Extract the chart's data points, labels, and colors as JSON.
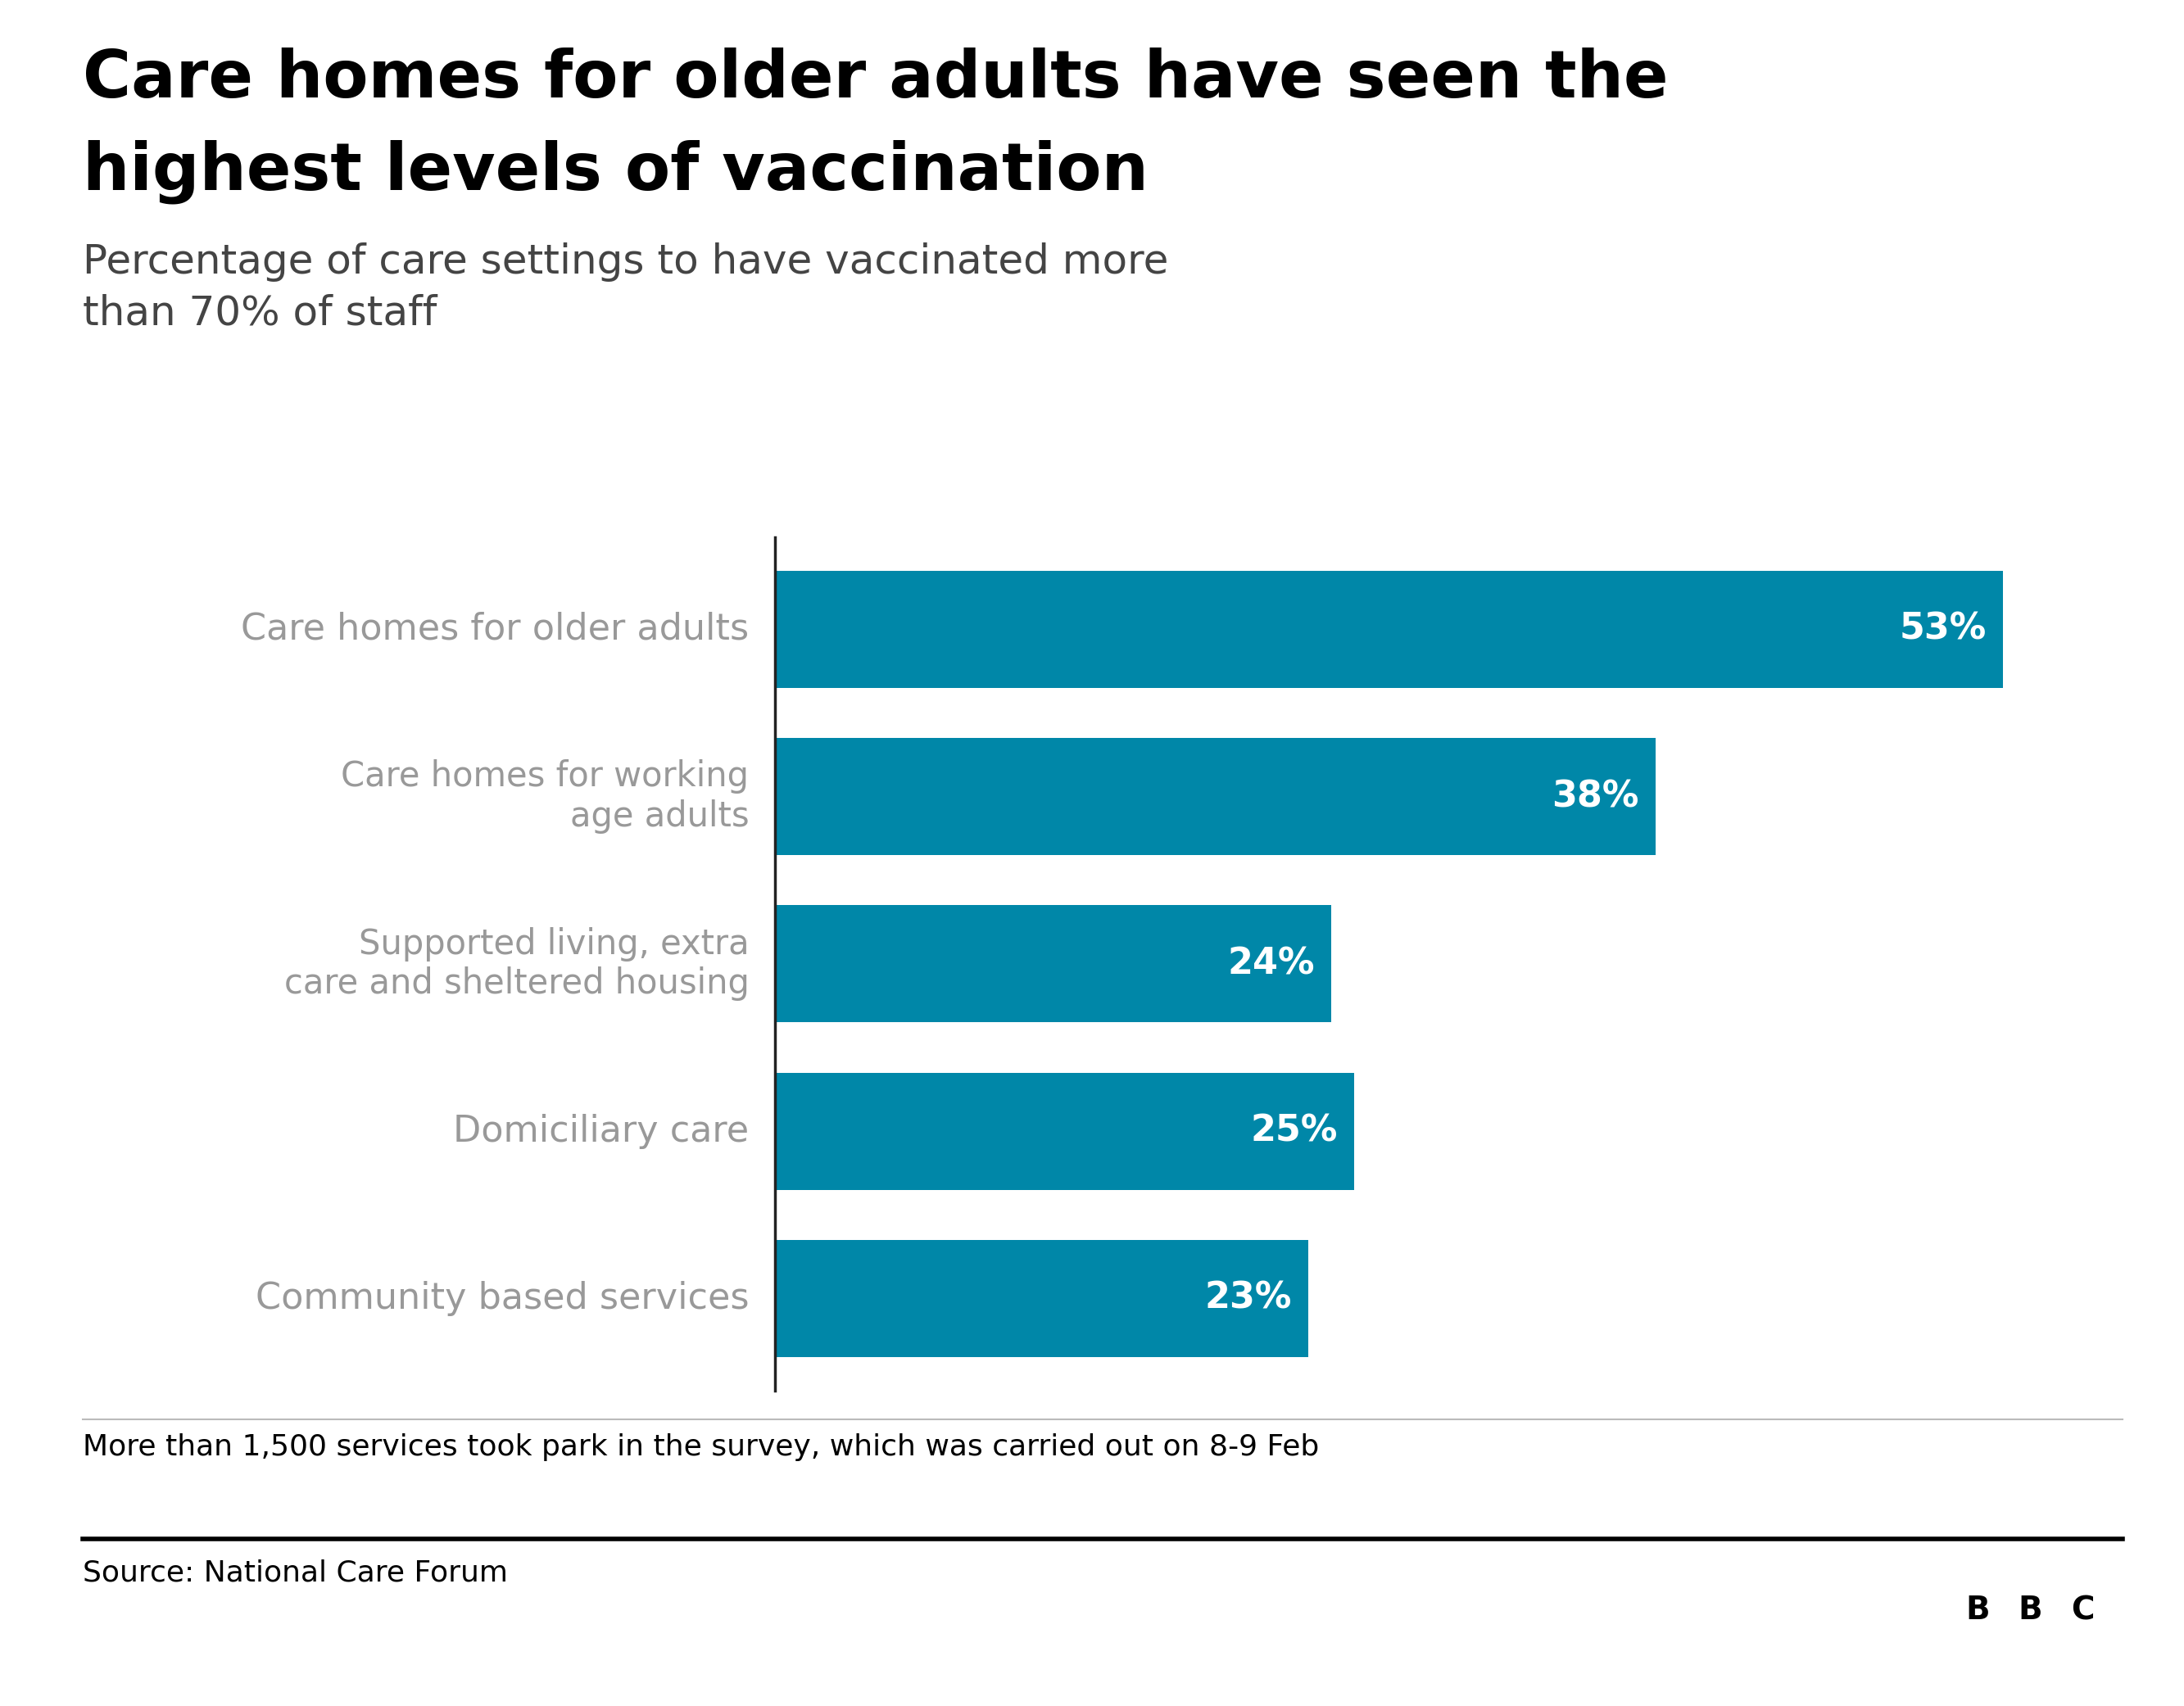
{
  "title_line1": "Care homes for older adults have seen the",
  "title_line2": "highest levels of vaccination",
  "subtitle": "Percentage of care settings to have vaccinated more\nthan 70% of staff",
  "categories": [
    "Care homes for older adults",
    "Care homes for working\nage adults",
    "Supported living, extra\ncare and sheltered housing",
    "Domiciliary care",
    "Community based services"
  ],
  "values": [
    53,
    38,
    24,
    25,
    23
  ],
  "labels": [
    "53%",
    "38%",
    "24%",
    "25%",
    "23%"
  ],
  "bar_color": "#0087a8",
  "label_color": "#ffffff",
  "category_color": "#999999",
  "title_color": "#000000",
  "subtitle_color": "#444444",
  "background_color": "#ffffff",
  "footnote": "More than 1,500 services took park in the survey, which was carried out on 8-9 Feb",
  "source": "Source: National Care Forum",
  "axis_line_color": "#222222",
  "separator_color": "#bbbbbb",
  "bottom_line_color": "#000000"
}
